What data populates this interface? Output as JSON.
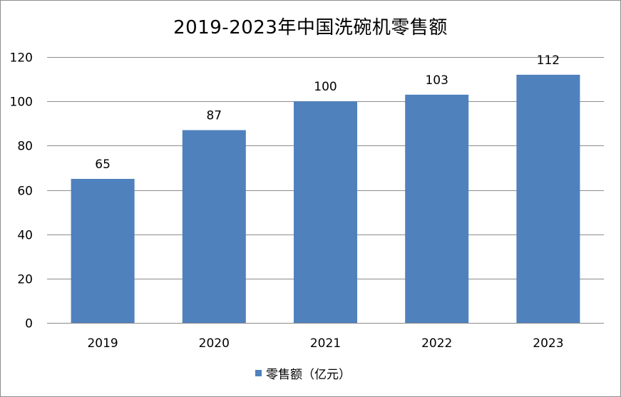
{
  "chart_data": {
    "type": "bar",
    "title": "2019-2023年中国洗碗机零售额",
    "xlabel": "",
    "ylabel": "",
    "categories": [
      "2019",
      "2020",
      "2021",
      "2022",
      "2023"
    ],
    "series": [
      {
        "name": "零售额（亿元）",
        "values": [
          65,
          87,
          100,
          103,
          112
        ],
        "data_labels": [
          "65",
          "87",
          "100",
          "103",
          "112"
        ],
        "color": "#4f81bd"
      }
    ],
    "ylim": [
      0,
      120
    ],
    "yticks": [
      0,
      20,
      40,
      60,
      80,
      100,
      120
    ],
    "ytick_labels": [
      "0",
      "20",
      "40",
      "60",
      "80",
      "100",
      "120"
    ],
    "grid": true,
    "legend_position": "bottom",
    "gridline_color": "#8c8c8c"
  }
}
